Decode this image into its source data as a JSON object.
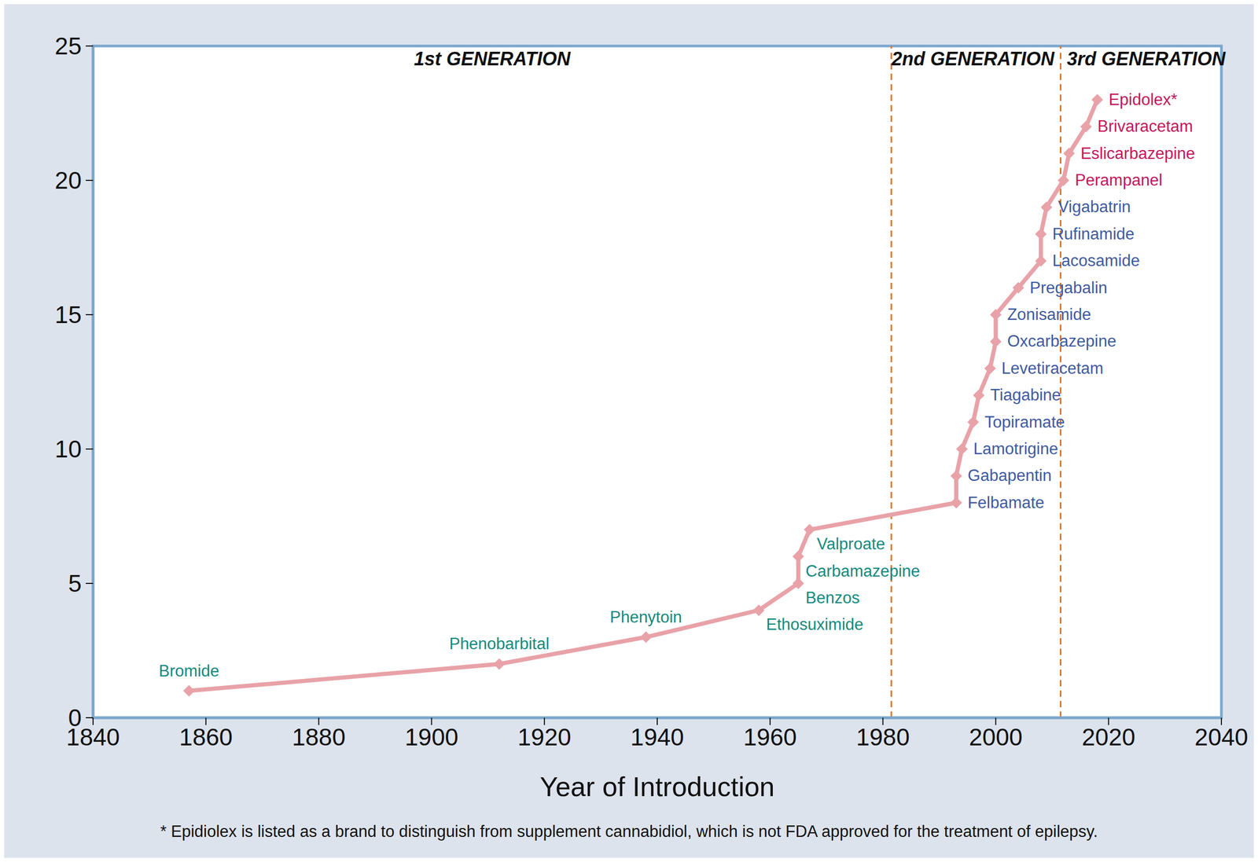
{
  "chart_data": {
    "type": "line",
    "xlabel": "Year of Introduction",
    "x": [
      1857,
      1912,
      1938,
      1958,
      1965,
      1965,
      1967,
      1993,
      1993,
      1994,
      1996,
      1997,
      1999,
      2000,
      2000,
      2004,
      2008,
      2008,
      2009,
      2012,
      2013,
      2016,
      2018
    ],
    "values": [
      1,
      2,
      3,
      4,
      5,
      6,
      7,
      8,
      9,
      10,
      11,
      12,
      13,
      14,
      15,
      16,
      17,
      18,
      19,
      20,
      21,
      22,
      23
    ],
    "point_labels": [
      "Bromide",
      "Phenobarbital",
      "Phenytoin",
      "Ethosuximide",
      "Benzos",
      "Carbamazepine",
      "Valproate",
      "Felbamate",
      "Gabapentin",
      "Lamotrigine",
      "Topiramate",
      "Tiagabine",
      "Levetiracetam",
      "Oxcarbazepine",
      "Zonisamide",
      "Pregabalin",
      "Lacosamide",
      "Rufinamide",
      "Vigabatrin",
      "Perampanel",
      "Eslicarbazepine",
      "Brivaracetam",
      "Epidolex*"
    ],
    "color": "#e8a2a8",
    "marker": "diamond",
    "xlim": [
      1840,
      2040
    ],
    "xticks": [
      1840,
      1860,
      1880,
      1900,
      1920,
      1940,
      1960,
      1980,
      2000,
      2020,
      2040
    ],
    "ylim": [
      0,
      25
    ],
    "yticks": [
      0,
      5,
      10,
      15,
      20,
      25
    ],
    "generation_boundaries": [
      1981.5,
      2011.5
    ],
    "generations": [
      {
        "label": "1st GENERATION",
        "color": "#138a7e"
      },
      {
        "label": "2nd GENERATION",
        "color": "#3f5aa0"
      },
      {
        "label": "3rd GENERATION",
        "color": "#c2185b"
      }
    ],
    "footnote": "* Epidiolex is listed as a brand to distinguish from supplement cannabidiol, which is not FDA approved for the treatment of epilepsy."
  }
}
